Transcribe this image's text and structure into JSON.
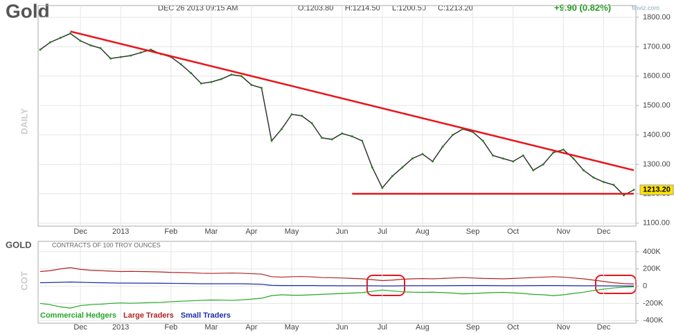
{
  "header": {
    "date": "DEC 26 2013 09:15 AM",
    "open": "O:1203.80",
    "high": "H:1214.50",
    "low": "L:1200.50",
    "close": "C:1213.20",
    "change": "+9.90 (0.82%)",
    "source": "finviz.com"
  },
  "chart_data": [
    {
      "type": "line",
      "title": "Gold",
      "ylabel": "DAILY",
      "color": "#333333",
      "categories": [
        "",
        "",
        "",
        "",
        "Dec",
        "",
        "",
        "",
        "2013",
        "",
        "",
        "",
        "",
        "Feb",
        "",
        "",
        "",
        "Mar",
        "",
        "",
        "",
        "Apr",
        "",
        "",
        "",
        "May",
        "",
        "",
        "",
        "",
        "Jun",
        "",
        "",
        "",
        "Jul",
        "",
        "",
        "",
        "Aug",
        "",
        "",
        "",
        "",
        "Sep",
        "",
        "",
        "",
        "Oct",
        "",
        "",
        "",
        "",
        "Nov",
        "",
        "",
        "",
        "Dec",
        "",
        "",
        ""
      ],
      "values": [
        1690,
        1715,
        1730,
        1745,
        1720,
        1705,
        1695,
        1660,
        1665,
        1670,
        1680,
        1690,
        1675,
        1665,
        1640,
        1610,
        1575,
        1580,
        1590,
        1605,
        1600,
        1570,
        1560,
        1380,
        1420,
        1470,
        1465,
        1440,
        1390,
        1385,
        1405,
        1395,
        1380,
        1290,
        1220,
        1260,
        1290,
        1320,
        1335,
        1310,
        1360,
        1400,
        1420,
        1410,
        1380,
        1330,
        1320,
        1310,
        1330,
        1280,
        1300,
        1340,
        1350,
        1320,
        1280,
        1255,
        1240,
        1230,
        1195,
        1213.2
      ],
      "ylim": [
        1090,
        1840
      ],
      "yticks": [
        {
          "value": 1100,
          "label": "1100.00"
        },
        {
          "value": 1200,
          "label": "1200.00"
        },
        {
          "value": 1300,
          "label": "1300.00"
        },
        {
          "value": 1400,
          "label": "1400.00"
        },
        {
          "value": 1500,
          "label": "1500.00"
        },
        {
          "value": 1600,
          "label": "1600.00"
        },
        {
          "value": 1700,
          "label": "1700.00"
        },
        {
          "value": 1800,
          "label": "1800.00"
        }
      ],
      "last_price": {
        "value": 1213.2,
        "label": "1213.20"
      },
      "trendlines": [
        {
          "from_category": 3,
          "to_category": 59,
          "start": 1752,
          "end": 1280,
          "color": "#e8161c"
        },
        {
          "from_category": 31,
          "to_category": 59,
          "start": 1200,
          "end": 1200,
          "color": "#e8161c"
        }
      ],
      "grid": true
    },
    {
      "type": "line",
      "title": "GOLD",
      "subtitle": "CONTRACTS OF 100 TROY OUNCES",
      "ylabel": "COT",
      "categories": [
        "",
        "",
        "",
        "",
        "Dec",
        "",
        "",
        "",
        "2013",
        "",
        "",
        "",
        "",
        "Feb",
        "",
        "",
        "",
        "Mar",
        "",
        "",
        "",
        "Apr",
        "",
        "",
        "",
        "May",
        "",
        "",
        "",
        "",
        "Jun",
        "",
        "",
        "",
        "Jul",
        "",
        "",
        "",
        "Aug",
        "",
        "",
        "",
        "",
        "Sep",
        "",
        "",
        "",
        "Oct",
        "",
        "",
        "",
        "",
        "Nov",
        "",
        "",
        "",
        "Dec",
        "",
        "",
        ""
      ],
      "series": [
        {
          "name": "Commercial Hedgers",
          "color": "#22a822",
          "values": [
            -200,
            -215,
            -240,
            -255,
            -225,
            -215,
            -210,
            -200,
            -195,
            -198,
            -195,
            -190,
            -188,
            -180,
            -175,
            -170,
            -165,
            -160,
            -162,
            -165,
            -160,
            -150,
            -140,
            -110,
            -100,
            -105,
            -105,
            -100,
            -95,
            -90,
            -85,
            -80,
            -75,
            -60,
            -45,
            -55,
            -65,
            -70,
            -72,
            -70,
            -75,
            -80,
            -90,
            -85,
            -80,
            -75,
            -72,
            -78,
            -85,
            -95,
            -100,
            -110,
            -100,
            -85,
            -70,
            -50,
            -35,
            -20,
            -12,
            -8
          ]
        },
        {
          "name": "Large Traders",
          "color": "#b22222",
          "values": [
            170,
            180,
            200,
            215,
            195,
            185,
            180,
            175,
            170,
            172,
            170,
            168,
            165,
            160,
            158,
            155,
            150,
            148,
            150,
            152,
            150,
            145,
            140,
            110,
            105,
            110,
            112,
            108,
            100,
            98,
            95,
            90,
            85,
            75,
            65,
            70,
            80,
            85,
            88,
            85,
            90,
            95,
            100,
            95,
            90,
            88,
            85,
            90,
            95,
            100,
            105,
            110,
            105,
            95,
            85,
            70,
            55,
            40,
            30,
            25
          ]
        },
        {
          "name": "Small Traders",
          "color": "#1c2fa8",
          "values": [
            40,
            42,
            45,
            48,
            45,
            42,
            40,
            38,
            36,
            36,
            35,
            35,
            34,
            33,
            32,
            30,
            28,
            28,
            28,
            28,
            28,
            25,
            22,
            10,
            8,
            8,
            8,
            8,
            6,
            6,
            5,
            5,
            5,
            5,
            3,
            3,
            5,
            6,
            6,
            6,
            6,
            7,
            8,
            8,
            8,
            7,
            6,
            6,
            6,
            7,
            8,
            8,
            7,
            6,
            5,
            5,
            4,
            3,
            2,
            2
          ]
        }
      ],
      "ylim": [
        -430,
        520
      ],
      "yticks": [
        {
          "value": -400,
          "label": "-400K"
        },
        {
          "value": -200,
          "label": "-200K"
        },
        0,
        {
          "value": 200,
          "label": "200K"
        },
        {
          "value": 400,
          "label": "400K"
        }
      ],
      "grid": true
    }
  ]
}
